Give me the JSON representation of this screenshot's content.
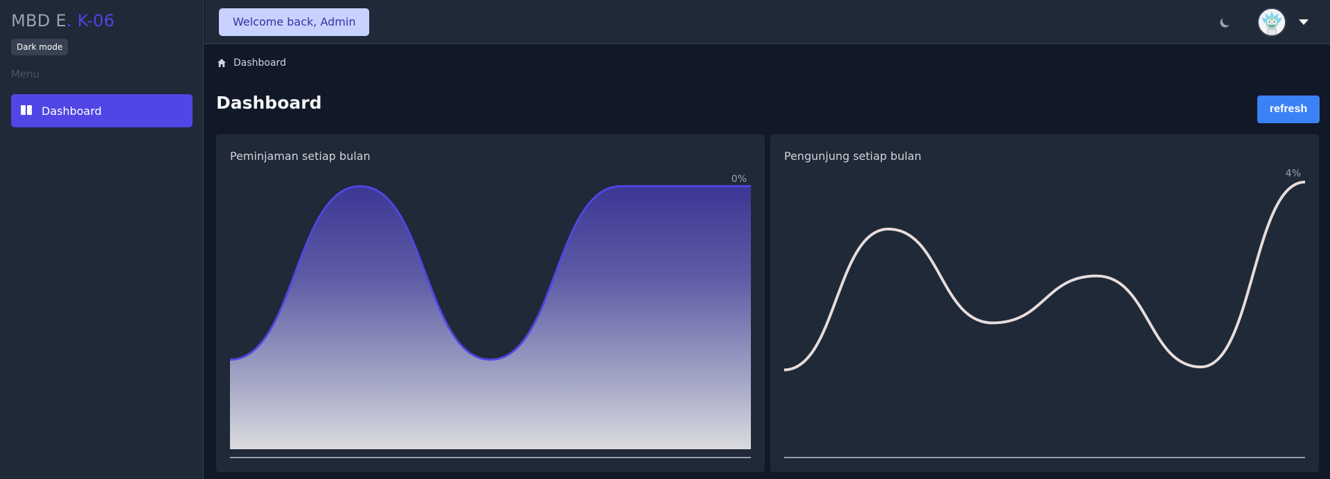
{
  "sidebar": {
    "brand_part1": "MBD E",
    "brand_part2": ". K-06",
    "mode_badge": "Dark mode",
    "menu_label": "Menu",
    "items": [
      {
        "label": "Dashboard",
        "icon": "dashboard-icon",
        "active": true
      }
    ]
  },
  "topbar": {
    "welcome": "Welcome back, Admin",
    "theme_icon": "moon-icon",
    "avatar_icon": "avatar-icon",
    "menu_icon": "caret-down-icon"
  },
  "breadcrumb": {
    "icon": "home-icon",
    "label": "Dashboard"
  },
  "page": {
    "title": "Dashboard",
    "refresh_label": "refresh"
  },
  "colors": {
    "accent": "#4f46e5",
    "refresh": "#3b82f6",
    "line_right": "#e7dcdc",
    "background": "#111827",
    "card": "#1f2937"
  },
  "chart_data": [
    {
      "type": "area",
      "title": "Peminjaman setiap bulan",
      "annotation": "0%",
      "series": [
        {
          "values": [
            0.33,
            1.0,
            0.33,
            1.0,
            1.0
          ]
        }
      ],
      "grid": false
    },
    {
      "type": "line",
      "title": "Pengunjung setiap bulan",
      "annotation": "4%",
      "series": [
        {
          "values": [
            0.36,
            0.84,
            0.52,
            0.68,
            0.37,
            1.0
          ]
        }
      ],
      "grid": false
    }
  ]
}
